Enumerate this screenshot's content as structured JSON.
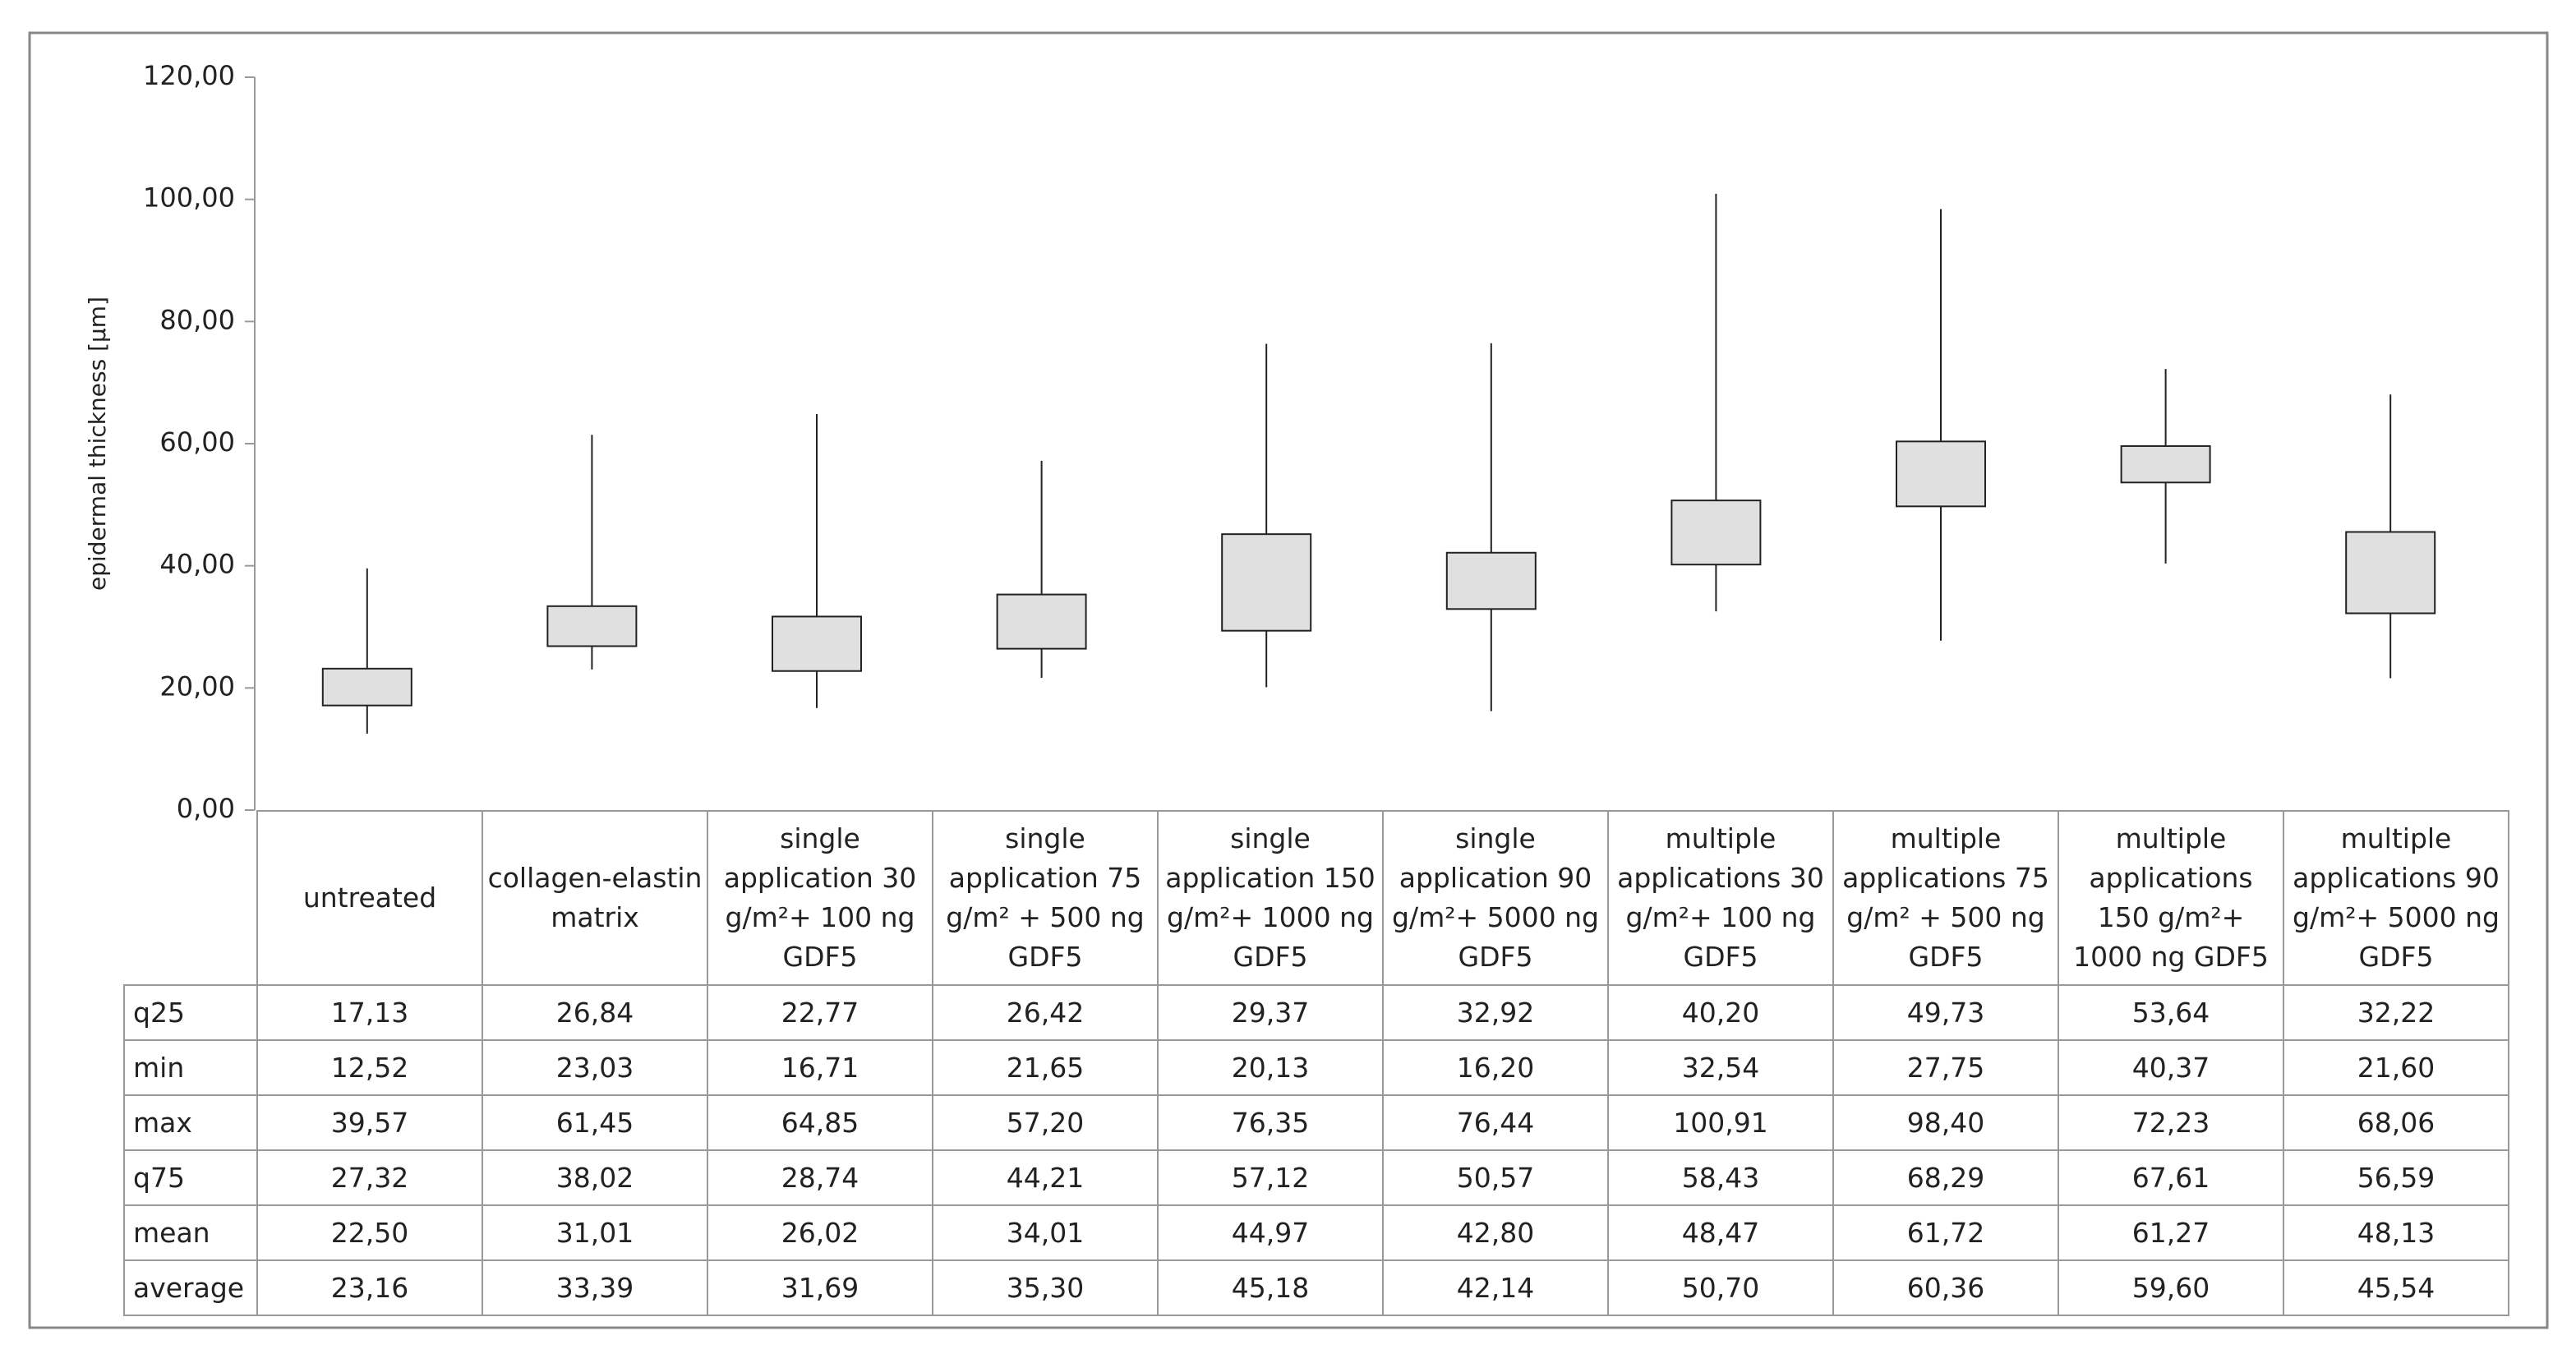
{
  "chart_data": {
    "type": "box",
    "ylabel": "epidermal thickness [µm]",
    "ylim": [
      0,
      120
    ],
    "yticks": [
      {
        "value": 0,
        "label": "0,00"
      },
      {
        "value": 20,
        "label": "20,00"
      },
      {
        "value": 40,
        "label": "40,00"
      },
      {
        "value": 60,
        "label": "60,00"
      },
      {
        "value": 80,
        "label": "80,00"
      },
      {
        "value": 100,
        "label": "100,00"
      },
      {
        "value": 120,
        "label": "120,00"
      }
    ],
    "box_color": "#e0e0e0",
    "categories": [
      "untreated",
      "collagen-elastin matrix",
      "single application 30 g/m²+ 100 ng GDF5",
      "single application 75 g/m² + 500 ng GDF5",
      "single application 150 g/m²+ 1000 ng GDF5",
      "single application 90 g/m²+ 5000 ng GDF5",
      "multiple applications 30 g/m²+ 100 ng GDF5",
      "multiple applications 75 g/m² + 500 ng GDF5",
      "multiple applications 150 g/m²+ 1000 ng GDF5",
      "multiple applications 90 g/m²+ 5000 ng GDF5"
    ],
    "series": [
      {
        "name": "q25",
        "values": [
          17.13,
          26.84,
          22.77,
          26.42,
          29.37,
          32.92,
          40.2,
          49.73,
          53.64,
          32.22
        ],
        "value_labels": [
          "17,13",
          "26,84",
          "22,77",
          "26,42",
          "29,37",
          "32,92",
          "40,20",
          "49,73",
          "53,64",
          "32,22"
        ]
      },
      {
        "name": "min",
        "values": [
          12.52,
          23.03,
          16.71,
          21.65,
          20.13,
          16.2,
          32.54,
          27.75,
          40.37,
          21.6
        ],
        "value_labels": [
          "12,52",
          "23,03",
          "16,71",
          "21,65",
          "20,13",
          "16,20",
          "32,54",
          "27,75",
          "40,37",
          "21,60"
        ]
      },
      {
        "name": "max",
        "values": [
          39.57,
          61.45,
          64.85,
          57.2,
          76.35,
          76.44,
          100.91,
          98.4,
          72.23,
          68.06
        ],
        "value_labels": [
          "39,57",
          "61,45",
          "64,85",
          "57,20",
          "76,35",
          "76,44",
          "100,91",
          "98,40",
          "72,23",
          "68,06"
        ]
      },
      {
        "name": "q75",
        "values": [
          27.32,
          38.02,
          28.74,
          44.21,
          57.12,
          50.57,
          58.43,
          68.29,
          67.61,
          56.59
        ],
        "value_labels": [
          "27,32",
          "38,02",
          "28,74",
          "44,21",
          "57,12",
          "50,57",
          "58,43",
          "68,29",
          "67,61",
          "56,59"
        ]
      },
      {
        "name": "mean",
        "values": [
          22.5,
          31.01,
          26.02,
          34.01,
          44.97,
          42.8,
          48.47,
          61.72,
          61.27,
          48.13
        ],
        "value_labels": [
          "22,50",
          "31,01",
          "26,02",
          "34,01",
          "44,97",
          "42,80",
          "48,47",
          "61,72",
          "61,27",
          "48,13"
        ]
      },
      {
        "name": "average",
        "values": [
          23.16,
          33.39,
          31.69,
          35.3,
          45.18,
          42.14,
          50.7,
          60.36,
          59.6,
          45.54
        ],
        "value_labels": [
          "23,16",
          "33,39",
          "31,69",
          "35,30",
          "45,18",
          "42,14",
          "50,70",
          "60,36",
          "59,60",
          "45,54"
        ]
      }
    ]
  }
}
